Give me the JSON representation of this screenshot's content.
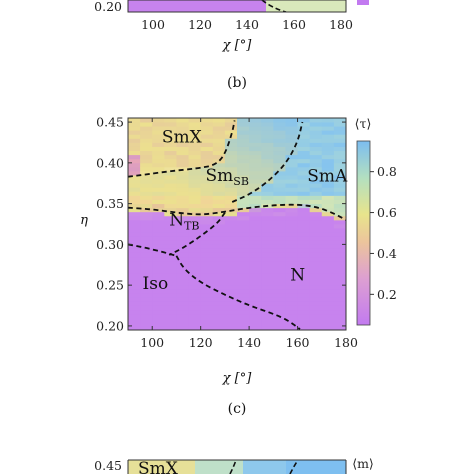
{
  "panel_labels": {
    "b": "(b)",
    "c": "(c)"
  },
  "colors": {
    "iso_n": "#c783ee",
    "mid": "#cfe7b6",
    "yellow": "#ece08f",
    "blue": "#86c4ee",
    "boundary": "#111111"
  },
  "top_panel": {
    "xlabel": "χ [°]",
    "xticks": [
      "100",
      "120",
      "140",
      "160",
      "180"
    ],
    "ytick_visible": "0.20"
  },
  "chart_data": {
    "type": "heatmap",
    "xlabel": "χ [°]",
    "ylabel": "η",
    "xlim": [
      90,
      180
    ],
    "ylim": [
      0.195,
      0.455
    ],
    "x_ticks": [
      100,
      120,
      140,
      160,
      180
    ],
    "y_ticks": [
      0.2,
      0.25,
      0.3,
      0.35,
      0.4,
      0.45
    ],
    "x_tick_labels": [
      "100",
      "120",
      "140",
      "160",
      "180"
    ],
    "y_tick_labels": [
      "0.20",
      "0.25",
      "0.30",
      "0.35",
      "0.40",
      "0.45"
    ],
    "colorbar": {
      "label": "⟨τ⟩",
      "range": [
        0.05,
        0.95
      ],
      "ticks": [
        0.2,
        0.4,
        0.6,
        0.8
      ],
      "tick_labels": [
        "0.2",
        "0.4",
        "0.6",
        "0.8"
      ]
    },
    "regions": [
      {
        "name": "SmX",
        "label": "SmX",
        "x": 104,
        "y": 0.425
      },
      {
        "name": "SmSB",
        "label": "Sm",
        "sub": "SB",
        "x": 122,
        "y": 0.378
      },
      {
        "name": "SmA",
        "label": "SmA",
        "x": 164,
        "y": 0.377
      },
      {
        "name": "NTB",
        "label": "N",
        "sub": "TB",
        "x": 107,
        "y": 0.323
      },
      {
        "name": "Iso",
        "label": "Iso",
        "x": 96,
        "y": 0.245
      },
      {
        "name": "N",
        "label": "N",
        "x": 157,
        "y": 0.256
      }
    ],
    "phase_boundaries": [
      {
        "name": "SmX-SmSB",
        "points": [
          [
            90,
            0.383
          ],
          [
            98,
            0.386
          ],
          [
            108,
            0.39
          ],
          [
            118,
            0.393
          ],
          [
            126,
            0.397
          ],
          [
            130,
            0.41
          ],
          [
            133,
            0.437
          ],
          [
            134,
            0.452
          ]
        ]
      },
      {
        "name": "SmSB-SmA",
        "points": [
          [
            133,
            0.352
          ],
          [
            140,
            0.361
          ],
          [
            147,
            0.375
          ],
          [
            155,
            0.398
          ],
          [
            160,
            0.425
          ],
          [
            162,
            0.45
          ]
        ]
      },
      {
        "name": "smectic-nematic",
        "points": [
          [
            90,
            0.345
          ],
          [
            100,
            0.343
          ],
          [
            110,
            0.339
          ],
          [
            120,
            0.336
          ],
          [
            130,
            0.34
          ],
          [
            140,
            0.345
          ],
          [
            150,
            0.348
          ],
          [
            160,
            0.349
          ],
          [
            168,
            0.346
          ],
          [
            175,
            0.338
          ],
          [
            180,
            0.33
          ]
        ]
      },
      {
        "name": "NTB-N",
        "points": [
          [
            130,
            0.339
          ],
          [
            127,
            0.326
          ],
          [
            120,
            0.31
          ],
          [
            113,
            0.296
          ],
          [
            107,
            0.287
          ]
        ]
      },
      {
        "name": "NTB-Iso",
        "points": [
          [
            90,
            0.3
          ],
          [
            97,
            0.296
          ],
          [
            104,
            0.291
          ],
          [
            110,
            0.286
          ]
        ]
      },
      {
        "name": "Iso-N",
        "points": [
          [
            110,
            0.286
          ],
          [
            113,
            0.27
          ],
          [
            120,
            0.253
          ],
          [
            130,
            0.238
          ],
          [
            140,
            0.225
          ],
          [
            150,
            0.215
          ],
          [
            156,
            0.207
          ],
          [
            161,
            0.196
          ]
        ]
      }
    ]
  },
  "bottom_panel": {
    "panel_label": "(c)",
    "ytick_visible": "0.45",
    "region_visible": "SmX",
    "colorbar_label": "⟨m⟩"
  }
}
